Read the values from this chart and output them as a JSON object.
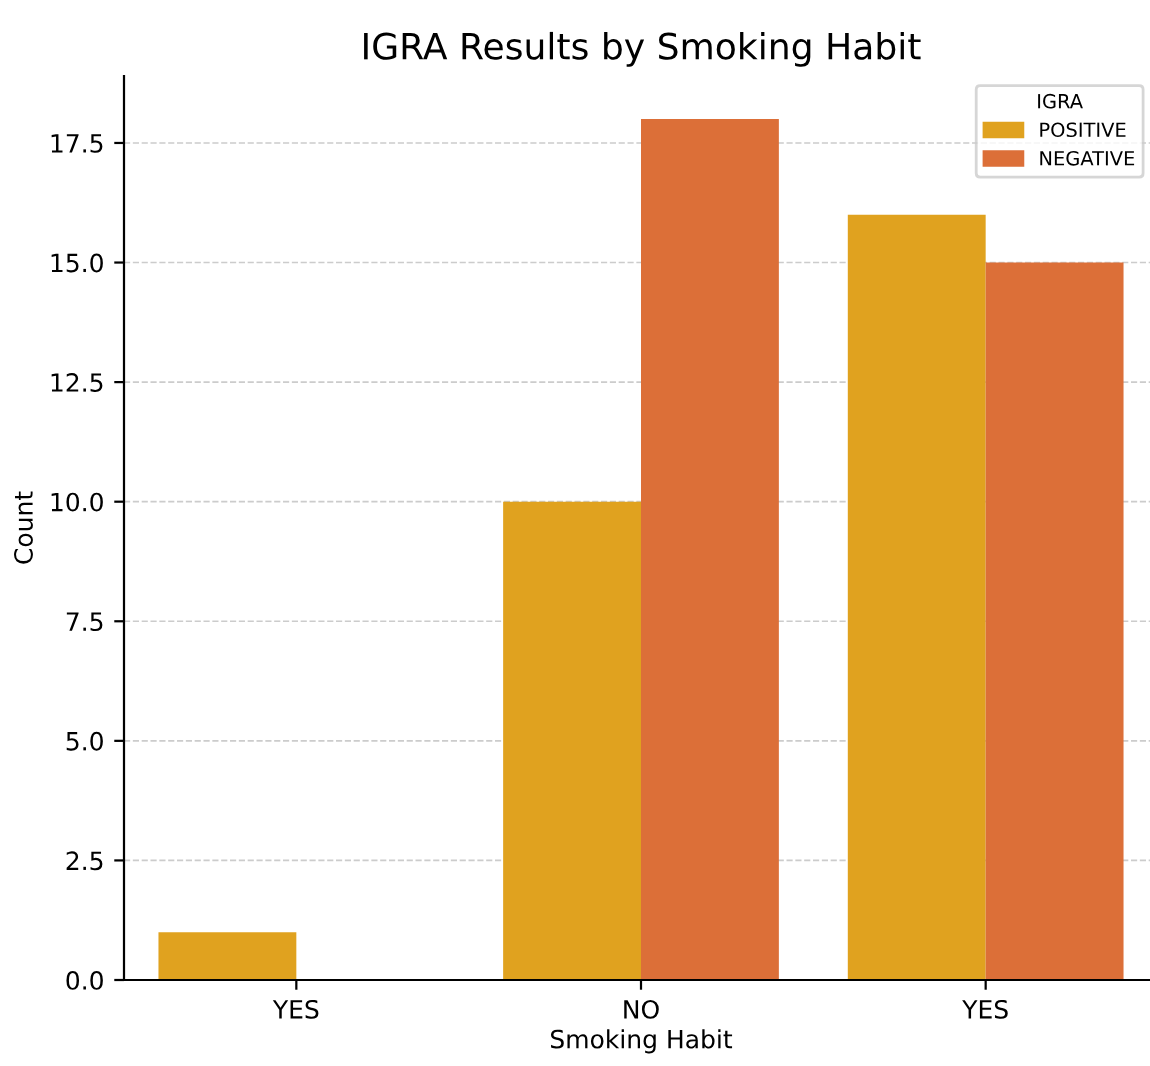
{
  "chart_data": {
    "type": "bar",
    "title": "IGRA Results by Smoking Habit",
    "xlabel": "Smoking Habit",
    "ylabel": "Count",
    "legend_title": "IGRA",
    "categories": [
      "YES",
      "NO",
      "YES"
    ],
    "series": [
      {
        "name": "POSITIVE",
        "color": "#e0a21f",
        "values": [
          1,
          10,
          16
        ]
      },
      {
        "name": "NEGATIVE",
        "color": "#dc6f38",
        "values": [
          null,
          18,
          15
        ]
      }
    ],
    "ylim": [
      0,
      18.9
    ],
    "yticks": [
      {
        "value": 0,
        "label": "0.0"
      },
      2.5,
      {
        "value": 5,
        "label": "5.0"
      },
      7.5,
      {
        "value": 10,
        "label": "10.0"
      },
      12.5,
      {
        "value": 15,
        "label": "15.0"
      },
      17.5
    ],
    "grid": "y",
    "legend": "top right"
  }
}
